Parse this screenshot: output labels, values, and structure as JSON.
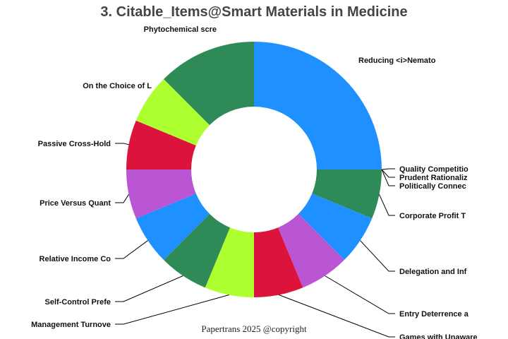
{
  "chart_data": {
    "type": "pie",
    "hole": true,
    "title": "3. Citable_Items@Smart Materials in Medicine",
    "labels": [
      "Reducing <i>Nemato",
      "Quality Competitio",
      "Prudent Rationaliz",
      "Politically Connec",
      "Corporate Profit T",
      "Delegation and Inf",
      "Entry Deterrence a",
      "Games with Unaware",
      "Management Turnove",
      "Self-Control Prefe",
      "Relative Income Co",
      "Price Versus Quant",
      "Passive Cross-Hold",
      "On the Choice of L",
      "Phytochemical scre"
    ],
    "values": [
      4,
      0,
      0,
      0,
      1,
      1,
      1,
      1,
      1,
      1,
      1,
      1,
      1,
      1,
      2
    ],
    "colors": [
      "#1E90FF",
      "#BA55D3",
      "#DC143C",
      "#ADFF2F",
      "#2E8B57",
      "#1E90FF",
      "#BA55D3",
      "#DC143C",
      "#ADFF2F",
      "#2E8B57",
      "#1E90FF",
      "#BA55D3",
      "#DC143C",
      "#ADFF2F",
      "#2E8B57"
    ],
    "direction": "clockwise",
    "start": "top"
  },
  "footer": "Papertrans 2025 @copyright"
}
